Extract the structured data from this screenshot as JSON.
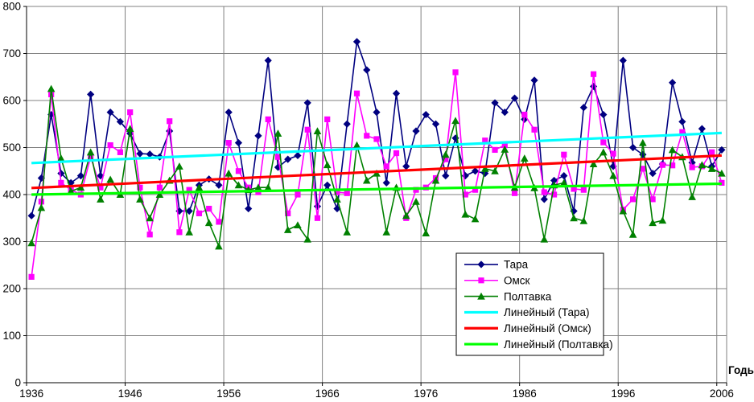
{
  "chart_data": {
    "type": "line",
    "title": "",
    "xlabel": "Годы",
    "ylabel": "",
    "grid": true,
    "legend_position": "inside-bottom-right",
    "ylim": [
      0,
      800
    ],
    "y_ticks": [
      0,
      100,
      200,
      300,
      400,
      500,
      600,
      700,
      800
    ],
    "y_tick_labels": [
      "0",
      "100",
      "200",
      "300",
      "400",
      "500",
      "600",
      "700",
      "800"
    ],
    "x_start_year": 1936,
    "x_end_year": 2006,
    "x_tick_years": [
      1936,
      1946,
      1956,
      1966,
      1976,
      1986,
      1996,
      2006
    ],
    "x_tick_labels": [
      "1936",
      "1946",
      "1956",
      "1966",
      "1976",
      "1986",
      "1996",
      "2006"
    ],
    "years": [
      1936,
      1937,
      1938,
      1939,
      1940,
      1941,
      1942,
      1943,
      1944,
      1945,
      1946,
      1947,
      1948,
      1949,
      1950,
      1951,
      1952,
      1953,
      1954,
      1955,
      1956,
      1957,
      1958,
      1959,
      1960,
      1961,
      1962,
      1963,
      1964,
      1965,
      1966,
      1967,
      1968,
      1969,
      1970,
      1971,
      1972,
      1973,
      1974,
      1975,
      1976,
      1977,
      1978,
      1979,
      1980,
      1981,
      1982,
      1983,
      1984,
      1985,
      1986,
      1987,
      1988,
      1989,
      1990,
      1991,
      1992,
      1993,
      1994,
      1995,
      1996,
      1997,
      1998,
      1999,
      2000,
      2001,
      2002,
      2003,
      2004,
      2005,
      2006
    ],
    "series": [
      {
        "name": "Тара",
        "color": "#000080",
        "marker": "diamond",
        "values": [
          355,
          435,
          570,
          445,
          425,
          440,
          613,
          440,
          575,
          555,
          530,
          487,
          486,
          480,
          535,
          365,
          365,
          420,
          433,
          420,
          575,
          510,
          370,
          525,
          685,
          458,
          475,
          483,
          595,
          375,
          420,
          370,
          550,
          725,
          665,
          575,
          425,
          615,
          460,
          535,
          570,
          550,
          440,
          520,
          440,
          450,
          445,
          595,
          575,
          605,
          560,
          643,
          390,
          430,
          440,
          365,
          585,
          630,
          570,
          460,
          685,
          500,
          485,
          445,
          465,
          638,
          555,
          468,
          540,
          460,
          495
        ]
      },
      {
        "name": "Омск",
        "color": "#FF00FF",
        "marker": "square",
        "values": [
          225,
          385,
          613,
          425,
          410,
          400,
          480,
          415,
          505,
          490,
          575,
          415,
          315,
          415,
          556,
          320,
          410,
          360,
          370,
          342,
          510,
          450,
          415,
          405,
          560,
          480,
          360,
          400,
          538,
          350,
          560,
          405,
          403,
          615,
          525,
          518,
          460,
          488,
          350,
          410,
          415,
          435,
          475,
          660,
          400,
          410,
          515,
          495,
          505,
          403,
          570,
          538,
          405,
          400,
          485,
          412,
          410,
          656,
          511,
          487,
          368,
          390,
          455,
          390,
          463,
          462,
          533,
          458,
          460,
          490,
          425
        ]
      },
      {
        "name": "Полтавка",
        "color": "#008000",
        "marker": "triangle",
        "values": [
          297,
          372,
          625,
          477,
          407,
          415,
          490,
          390,
          432,
          400,
          540,
          390,
          350,
          400,
          430,
          460,
          320,
          415,
          340,
          290,
          445,
          420,
          410,
          415,
          415,
          530,
          325,
          335,
          305,
          535,
          463,
          390,
          320,
          505,
          430,
          445,
          320,
          415,
          355,
          385,
          318,
          430,
          485,
          557,
          358,
          348,
          455,
          450,
          496,
          415,
          477,
          414,
          305,
          420,
          425,
          350,
          344,
          465,
          490,
          440,
          365,
          315,
          510,
          340,
          345,
          495,
          480,
          395,
          463,
          455,
          445
        ]
      }
    ],
    "trend_lines": [
      {
        "name": "Линейный (Тара)",
        "color": "#00FFFF",
        "start_value": 467,
        "end_value": 531
      },
      {
        "name": "Линейный (Омск)",
        "color": "#FF0000",
        "start_value": 414,
        "end_value": 483
      },
      {
        "name": "Линейный (Полтавка)",
        "color": "#00FF00",
        "start_value": 400,
        "end_value": 423
      }
    ],
    "legend_items": [
      "Тара",
      "Омск",
      "Полтавка",
      "Линейный (Тара)",
      "Линейный (Омск)",
      "Линейный (Полтавка)"
    ]
  },
  "axis": {
    "x_title": "Годы"
  },
  "colors": {
    "gridline": "#808080",
    "axis": "#000000",
    "background": "#FFFFFF",
    "legend_border": "#000000"
  }
}
